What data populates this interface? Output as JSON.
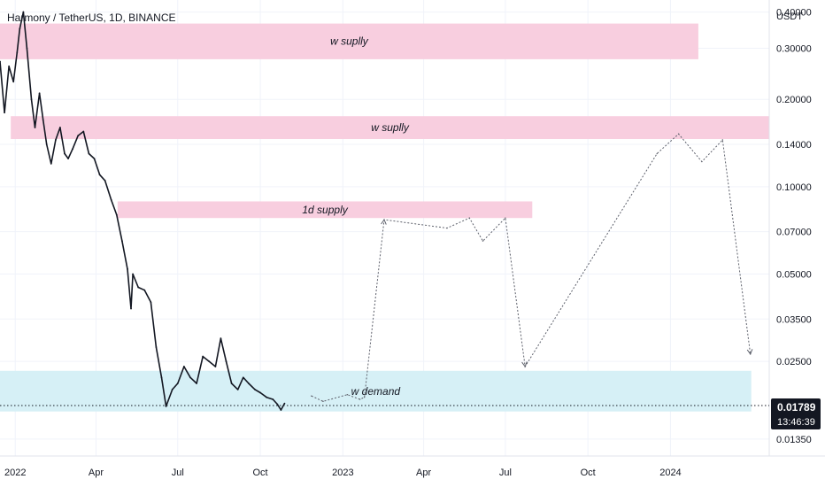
{
  "header": {
    "title": "Harmony / TetherUS, 1D, BINANCE"
  },
  "price_axis": {
    "unit_label": "USDT",
    "ticks": [
      "0.40000",
      "0.30000",
      "0.20000",
      "0.14000",
      "0.10000",
      "0.07000",
      "0.05000",
      "0.03500",
      "0.02500",
      "0.01350"
    ],
    "current_price": "0.01789",
    "countdown": "13:46:39",
    "current_badge_color": "#131722"
  },
  "time_axis": {
    "ticks": [
      "2022",
      "Apr",
      "Jul",
      "Oct",
      "2023",
      "Apr",
      "Jul",
      "Oct",
      "2024"
    ]
  },
  "chart_data": {
    "type": "line",
    "title": "Harmony / TetherUS, 1D, BINANCE",
    "y_scale": "log",
    "ylim": [
      0.0118,
      0.44
    ],
    "xlim": [
      "2021-12-15",
      "2024-04-20"
    ],
    "grid": true,
    "series": [
      {
        "x": [
          "2021-12-15",
          "2021-12-20",
          "2021-12-25",
          "2021-12-30",
          "2022-01-03",
          "2022-01-06",
          "2022-01-10",
          "2022-01-14",
          "2022-01-19",
          "2022-01-23",
          "2022-01-28",
          "2022-02-01",
          "2022-02-05",
          "2022-02-10",
          "2022-02-15",
          "2022-02-20",
          "2022-02-25",
          "2022-03-01",
          "2022-03-06",
          "2022-03-12",
          "2022-03-18",
          "2022-03-24",
          "2022-03-30",
          "2022-04-05",
          "2022-04-11",
          "2022-04-18",
          "2022-04-24",
          "2022-04-30",
          "2022-05-06",
          "2022-05-10",
          "2022-05-12",
          "2022-05-18",
          "2022-05-25",
          "2022-06-01",
          "2022-06-07",
          "2022-06-13",
          "2022-06-18",
          "2022-06-25",
          "2022-07-01",
          "2022-07-08",
          "2022-07-15",
          "2022-07-22",
          "2022-07-29",
          "2022-08-05",
          "2022-08-12",
          "2022-08-18",
          "2022-08-24",
          "2022-08-30",
          "2022-09-06",
          "2022-09-12",
          "2022-09-18",
          "2022-09-25",
          "2022-10-01",
          "2022-10-08",
          "2022-10-15",
          "2022-10-20",
          "2022-10-24",
          "2022-10-28"
        ],
        "values": [
          0.27,
          0.18,
          0.26,
          0.23,
          0.29,
          0.35,
          0.4,
          0.3,
          0.2,
          0.16,
          0.21,
          0.17,
          0.14,
          0.12,
          0.145,
          0.16,
          0.13,
          0.125,
          0.135,
          0.15,
          0.155,
          0.13,
          0.125,
          0.11,
          0.105,
          0.09,
          0.08,
          0.065,
          0.052,
          0.038,
          0.05,
          0.045,
          0.044,
          0.04,
          0.028,
          0.022,
          0.0175,
          0.02,
          0.021,
          0.024,
          0.022,
          0.021,
          0.026,
          0.025,
          0.024,
          0.03,
          0.025,
          0.021,
          0.02,
          0.022,
          0.021,
          0.02,
          0.0195,
          0.0188,
          0.0185,
          0.0178,
          0.017,
          0.0179
        ]
      },
      {
        "x": [
          "2022-11-27",
          "2022-12-10",
          "2023-01-06",
          "2023-01-20",
          "2023-01-25",
          "2023-02-16",
          "2023-04-27",
          "2023-05-22",
          "2023-06-06",
          "2023-07-01",
          "2023-07-23",
          "2023-12-17",
          "2024-01-10",
          "2024-02-05",
          "2024-02-28",
          "2024-03-30"
        ],
        "values": [
          0.019,
          0.0182,
          0.0192,
          0.0185,
          0.0188,
          0.077,
          0.072,
          0.078,
          0.065,
          0.078,
          0.024,
          0.13,
          0.152,
          0.122,
          0.145,
          0.0265
        ]
      }
    ],
    "zones": [
      {
        "label": "w suplly",
        "low": 0.275,
        "high": 0.365,
        "x_start": "2021-12-15",
        "x_end": "2024-02-01",
        "color": "#f8cedf"
      },
      {
        "label": "w suplly",
        "low": 0.146,
        "high": 0.175,
        "x_start": "2021-12-27",
        "x_end": "2024-04-20",
        "color": "#f8cedf"
      },
      {
        "label": "1d supply",
        "low": 0.078,
        "high": 0.089,
        "x_start": "2022-04-25",
        "x_end": "2023-07-31",
        "color": "#f8cedf"
      },
      {
        "label": "w demand",
        "low": 0.0168,
        "high": 0.0232,
        "x_start": "2021-12-15",
        "x_end": "2024-03-31",
        "color": "#d6f0f6"
      }
    ]
  }
}
